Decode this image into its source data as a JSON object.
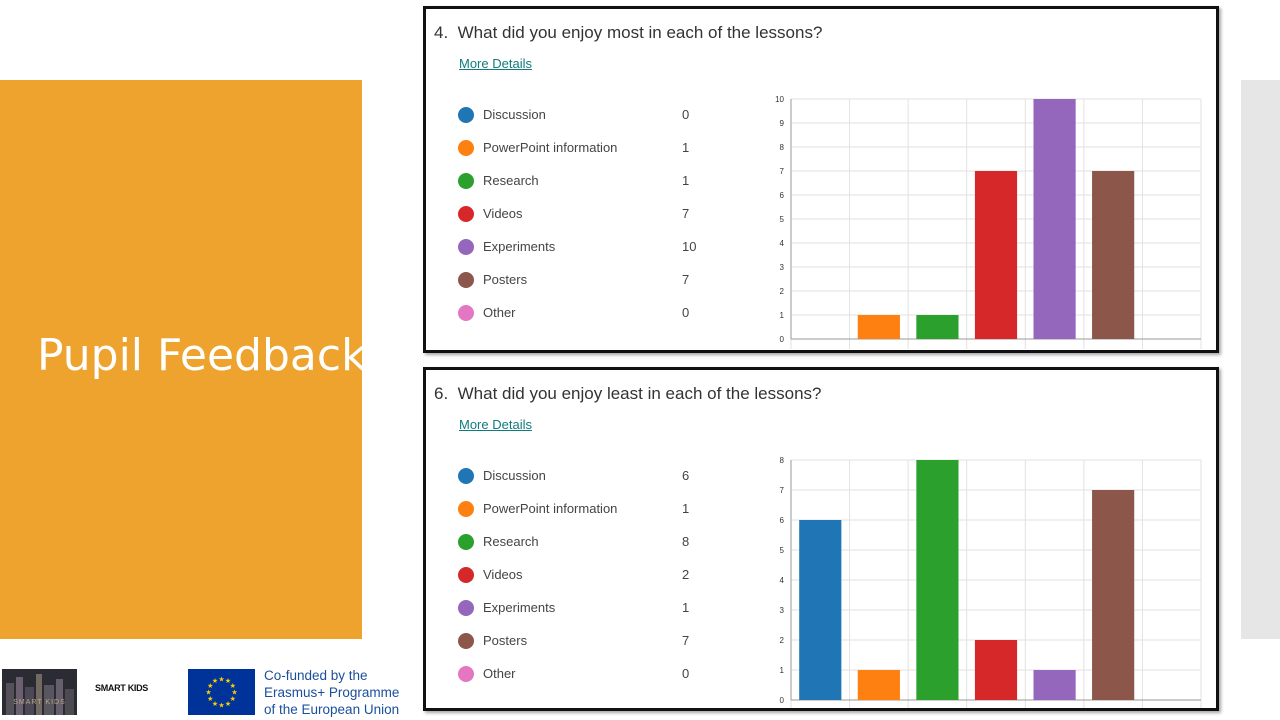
{
  "slide": {
    "title": "Pupil Feedback"
  },
  "footer": {
    "logo_a_text": "SMART KIDS",
    "logo_b_text": "SMART KIDS",
    "eu_lines": [
      "Co-funded by the",
      "Erasmus+ Programme",
      "of the European Union"
    ]
  },
  "questions": [
    {
      "number": "4.",
      "text": "What did you enjoy most in each of the lessons?",
      "link": "More Details",
      "legend": [
        {
          "label": "Discussion",
          "count": "0",
          "color": "#2076b4"
        },
        {
          "label": "PowerPoint information",
          "count": "1",
          "color": "#fd8011"
        },
        {
          "label": "Research",
          "count": "1",
          "color": "#2ca02c"
        },
        {
          "label": "Videos",
          "count": "7",
          "color": "#d62829"
        },
        {
          "label": "Experiments",
          "count": "10",
          "color": "#9467bd"
        },
        {
          "label": "Posters",
          "count": "7",
          "color": "#8c564b"
        },
        {
          "label": "Other",
          "count": "0",
          "color": "#e377c2"
        }
      ]
    },
    {
      "number": "6.",
      "text": "What did you enjoy least in each of the lessons?",
      "link": "More Details",
      "legend": [
        {
          "label": "Discussion",
          "count": "6",
          "color": "#2076b4"
        },
        {
          "label": "PowerPoint information",
          "count": "1",
          "color": "#fd8011"
        },
        {
          "label": "Research",
          "count": "8",
          "color": "#2ca02c"
        },
        {
          "label": "Videos",
          "count": "2",
          "color": "#d62829"
        },
        {
          "label": "Experiments",
          "count": "1",
          "color": "#9467bd"
        },
        {
          "label": "Posters",
          "count": "7",
          "color": "#8c564b"
        },
        {
          "label": "Other",
          "count": "0",
          "color": "#e377c2"
        }
      ]
    }
  ],
  "chart_data": [
    {
      "type": "bar",
      "title": "What did you enjoy most in each of the lessons?",
      "categories": [
        "Discussion",
        "PowerPoint information",
        "Research",
        "Videos",
        "Experiments",
        "Posters",
        "Other"
      ],
      "values": [
        0,
        1,
        1,
        7,
        10,
        7,
        0
      ],
      "colors": [
        "#2076b4",
        "#fd8011",
        "#2ca02c",
        "#d62829",
        "#9467bd",
        "#8c564b",
        "#e377c2"
      ],
      "ylim": [
        0,
        10
      ],
      "yticks": [
        "0",
        "1",
        "2",
        "3",
        "4",
        "5",
        "6",
        "7",
        "8",
        "9",
        "10"
      ],
      "grid": true
    },
    {
      "type": "bar",
      "title": "What did you enjoy least in each of the lessons?",
      "categories": [
        "Discussion",
        "PowerPoint information",
        "Research",
        "Videos",
        "Experiments",
        "Posters",
        "Other"
      ],
      "values": [
        6,
        1,
        8,
        2,
        1,
        7,
        0
      ],
      "colors": [
        "#2076b4",
        "#fd8011",
        "#2ca02c",
        "#d62829",
        "#9467bd",
        "#8c564b",
        "#e377c2"
      ],
      "ylim": [
        0,
        8
      ],
      "yticks": [
        "0",
        "1",
        "2",
        "3",
        "4",
        "5",
        "6",
        "7",
        "8"
      ],
      "grid": true
    }
  ]
}
